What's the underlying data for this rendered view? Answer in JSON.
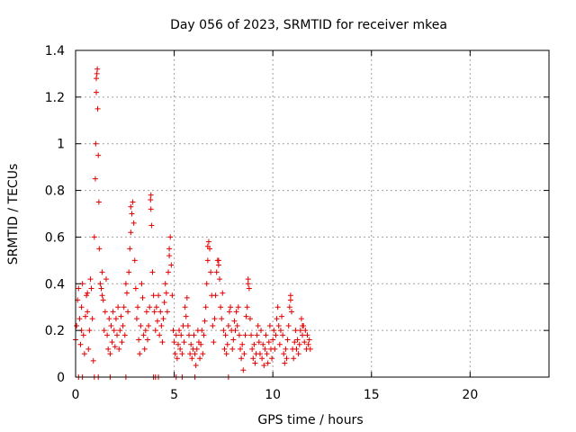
{
  "chart_data": {
    "type": "scatter",
    "title": "Day 056 of 2023, SRMTID for receiver mkea",
    "xlabel": "GPS time / hours",
    "ylabel": "SRMTID / TECUs",
    "xlim": [
      0,
      24
    ],
    "ylim": [
      0,
      1.4
    ],
    "xticks": [
      0,
      5,
      10,
      15,
      20
    ],
    "xtick_labels": [
      "0",
      "5",
      "10",
      "15",
      "20"
    ],
    "yticks": [
      0,
      0.2,
      0.4,
      0.6,
      0.8,
      1.0,
      1.2,
      1.4
    ],
    "ytick_labels": [
      "0",
      "0.2",
      "0.4",
      "0.6",
      "0.8",
      "1",
      "1.2",
      "1.4"
    ],
    "grid": true,
    "marker": "+",
    "series_color": "#e00000",
    "series": [
      {
        "name": "SRMTID",
        "points": [
          [
            0.0,
            0.16
          ],
          [
            0.05,
            0.22
          ],
          [
            0.1,
            0.33
          ],
          [
            0.15,
            0.38
          ],
          [
            0.2,
            0.25
          ],
          [
            0.25,
            0.14
          ],
          [
            0.3,
            0.3
          ],
          [
            0.35,
            0.4
          ],
          [
            0.4,
            0.18
          ],
          [
            0.45,
            0.1
          ],
          [
            0.5,
            0.26
          ],
          [
            0.55,
            0.35
          ],
          [
            0.6,
            0.28
          ],
          [
            0.65,
            0.12
          ],
          [
            0.7,
            0.2
          ],
          [
            0.75,
            0.42
          ],
          [
            0.8,
            0.38
          ],
          [
            0.85,
            0.25
          ],
          [
            0.9,
            0.07
          ],
          [
            0.95,
            0.6
          ],
          [
            1.0,
            0.85
          ],
          [
            1.02,
            1.0
          ],
          [
            1.05,
            1.22
          ],
          [
            1.08,
            1.3
          ],
          [
            1.1,
            1.32
          ],
          [
            1.12,
            1.15
          ],
          [
            1.15,
            0.95
          ],
          [
            1.18,
            0.75
          ],
          [
            1.2,
            0.55
          ],
          [
            1.25,
            0.4
          ],
          [
            1.3,
            0.38
          ],
          [
            1.35,
            0.45
          ],
          [
            1.4,
            0.33
          ],
          [
            1.45,
            0.2
          ],
          [
            1.5,
            0.28
          ],
          [
            1.55,
            0.42
          ],
          [
            1.6,
            0.18
          ],
          [
            1.65,
            0.12
          ],
          [
            1.7,
            0.25
          ],
          [
            1.75,
            0.1
          ],
          [
            1.8,
            0.22
          ],
          [
            1.85,
            0.15
          ],
          [
            1.9,
            0.28
          ],
          [
            1.95,
            0.2
          ],
          [
            2.0,
            0.13
          ],
          [
            2.05,
            0.25
          ],
          [
            2.1,
            0.18
          ],
          [
            2.15,
            0.3
          ],
          [
            2.2,
            0.12
          ],
          [
            2.25,
            0.2
          ],
          [
            2.3,
            0.26
          ],
          [
            2.35,
            0.15
          ],
          [
            2.4,
            0.22
          ],
          [
            2.45,
            0.3
          ],
          [
            2.5,
            0.18
          ],
          [
            2.55,
            0.4
          ],
          [
            2.6,
            0.36
          ],
          [
            2.65,
            0.28
          ],
          [
            2.7,
            0.45
          ],
          [
            2.75,
            0.55
          ],
          [
            2.8,
            0.62
          ],
          [
            2.85,
            0.7
          ],
          [
            2.9,
            0.75
          ],
          [
            2.95,
            0.66
          ],
          [
            3.0,
            0.5
          ],
          [
            3.05,
            0.38
          ],
          [
            3.1,
            0.25
          ],
          [
            3.15,
            0.3
          ],
          [
            3.2,
            0.16
          ],
          [
            3.25,
            0.1
          ],
          [
            3.3,
            0.22
          ],
          [
            3.35,
            0.4
          ],
          [
            3.4,
            0.34
          ],
          [
            3.45,
            0.18
          ],
          [
            3.5,
            0.12
          ],
          [
            3.55,
            0.2
          ],
          [
            3.6,
            0.28
          ],
          [
            3.65,
            0.16
          ],
          [
            3.7,
            0.22
          ],
          [
            3.75,
            0.3
          ],
          [
            3.8,
            0.76
          ],
          [
            3.82,
            0.78
          ],
          [
            3.85,
            0.65
          ],
          [
            3.9,
            0.45
          ],
          [
            3.95,
            0.35
          ],
          [
            4.0,
            0.28
          ],
          [
            4.05,
            0.2
          ],
          [
            4.1,
            0.3
          ],
          [
            4.15,
            0.24
          ],
          [
            4.2,
            0.35
          ],
          [
            4.25,
            0.18
          ],
          [
            4.3,
            0.28
          ],
          [
            4.35,
            0.22
          ],
          [
            4.4,
            0.15
          ],
          [
            4.45,
            0.25
          ],
          [
            4.5,
            0.32
          ],
          [
            4.55,
            0.4
          ],
          [
            4.6,
            0.36
          ],
          [
            4.65,
            0.28
          ],
          [
            4.7,
            0.45
          ],
          [
            4.75,
            0.55
          ],
          [
            4.8,
            0.6
          ],
          [
            4.85,
            0.48
          ],
          [
            4.9,
            0.35
          ],
          [
            4.95,
            0.2
          ],
          [
            5.0,
            0.15
          ],
          [
            5.05,
            0.1
          ],
          [
            5.1,
            0.18
          ],
          [
            5.15,
            0.08
          ],
          [
            5.2,
            0.14
          ],
          [
            5.25,
            0.2
          ],
          [
            5.3,
            0.12
          ],
          [
            5.35,
            0.18
          ],
          [
            5.4,
            0.1
          ],
          [
            5.45,
            0.22
          ],
          [
            5.5,
            0.15
          ],
          [
            5.55,
            0.3
          ],
          [
            5.6,
            0.26
          ],
          [
            5.65,
            0.34
          ],
          [
            5.7,
            0.22
          ],
          [
            5.75,
            0.18
          ],
          [
            5.8,
            0.1
          ],
          [
            5.85,
            0.14
          ],
          [
            5.9,
            0.08
          ],
          [
            5.95,
            0.12
          ],
          [
            6.0,
            0.18
          ],
          [
            6.05,
            0.1
          ],
          [
            6.1,
            0.05
          ],
          [
            6.15,
            0.12
          ],
          [
            6.2,
            0.2
          ],
          [
            6.25,
            0.15
          ],
          [
            6.3,
            0.08
          ],
          [
            6.35,
            0.14
          ],
          [
            6.4,
            0.2
          ],
          [
            6.45,
            0.1
          ],
          [
            6.5,
            0.18
          ],
          [
            6.55,
            0.24
          ],
          [
            6.6,
            0.3
          ],
          [
            6.65,
            0.4
          ],
          [
            6.7,
            0.5
          ],
          [
            6.75,
            0.58
          ],
          [
            6.8,
            0.55
          ],
          [
            6.85,
            0.45
          ],
          [
            6.9,
            0.35
          ],
          [
            6.95,
            0.22
          ],
          [
            7.0,
            0.15
          ],
          [
            7.05,
            0.25
          ],
          [
            7.1,
            0.35
          ],
          [
            7.15,
            0.45
          ],
          [
            7.2,
            0.5
          ],
          [
            7.25,
            0.48
          ],
          [
            7.3,
            0.42
          ],
          [
            7.35,
            0.3
          ],
          [
            7.4,
            0.25
          ],
          [
            7.45,
            0.36
          ],
          [
            7.5,
            0.2
          ],
          [
            7.55,
            0.12
          ],
          [
            7.6,
            0.18
          ],
          [
            7.65,
            0.1
          ],
          [
            7.7,
            0.14
          ],
          [
            7.75,
            0.22
          ],
          [
            7.8,
            0.28
          ],
          [
            7.85,
            0.3
          ],
          [
            7.9,
            0.2
          ],
          [
            7.95,
            0.12
          ],
          [
            8.0,
            0.16
          ],
          [
            8.05,
            0.24
          ],
          [
            8.1,
            0.2
          ],
          [
            8.15,
            0.28
          ],
          [
            8.2,
            0.22
          ],
          [
            8.25,
            0.3
          ],
          [
            8.3,
            0.18
          ],
          [
            8.35,
            0.12
          ],
          [
            8.4,
            0.08
          ],
          [
            8.45,
            0.14
          ],
          [
            8.5,
            0.03
          ],
          [
            8.55,
            0.1
          ],
          [
            8.6,
            0.18
          ],
          [
            8.65,
            0.26
          ],
          [
            8.7,
            0.3
          ],
          [
            8.75,
            0.42
          ],
          [
            8.8,
            0.38
          ],
          [
            8.85,
            0.25
          ],
          [
            8.9,
            0.18
          ],
          [
            8.95,
            0.12
          ],
          [
            9.0,
            0.08
          ],
          [
            9.05,
            0.14
          ],
          [
            9.1,
            0.06
          ],
          [
            9.15,
            0.1
          ],
          [
            9.2,
            0.18
          ],
          [
            9.25,
            0.22
          ],
          [
            9.3,
            0.15
          ],
          [
            9.35,
            0.1
          ],
          [
            9.4,
            0.2
          ],
          [
            9.45,
            0.08
          ],
          [
            9.5,
            0.14
          ],
          [
            9.55,
            0.05
          ],
          [
            9.6,
            0.12
          ],
          [
            9.65,
            0.18
          ],
          [
            9.7,
            0.1
          ],
          [
            9.75,
            0.06
          ],
          [
            9.8,
            0.15
          ],
          [
            9.85,
            0.22
          ],
          [
            9.9,
            0.12
          ],
          [
            9.95,
            0.08
          ],
          [
            10.0,
            0.16
          ],
          [
            10.05,
            0.2
          ],
          [
            10.1,
            0.12
          ],
          [
            10.15,
            0.18
          ],
          [
            10.2,
            0.25
          ],
          [
            10.25,
            0.3
          ],
          [
            10.3,
            0.22
          ],
          [
            10.35,
            0.14
          ],
          [
            10.4,
            0.2
          ],
          [
            10.45,
            0.26
          ],
          [
            10.5,
            0.18
          ],
          [
            10.55,
            0.1
          ],
          [
            10.6,
            0.06
          ],
          [
            10.65,
            0.12
          ],
          [
            10.7,
            0.08
          ],
          [
            10.75,
            0.16
          ],
          [
            10.8,
            0.22
          ],
          [
            10.85,
            0.3
          ],
          [
            10.9,
            0.35
          ],
          [
            10.95,
            0.28
          ],
          [
            11.0,
            0.12
          ],
          [
            11.05,
            0.08
          ],
          [
            11.1,
            0.15
          ],
          [
            11.15,
            0.2
          ],
          [
            11.2,
            0.12
          ],
          [
            11.25,
            0.16
          ],
          [
            11.3,
            0.1
          ],
          [
            11.35,
            0.14
          ],
          [
            11.4,
            0.2
          ],
          [
            11.45,
            0.25
          ],
          [
            11.5,
            0.18
          ],
          [
            11.55,
            0.22
          ],
          [
            11.6,
            0.15
          ],
          [
            11.65,
            0.2
          ],
          [
            11.7,
            0.12
          ],
          [
            11.75,
            0.18
          ],
          [
            11.8,
            0.14
          ],
          [
            11.85,
            0.16
          ],
          [
            11.9,
            0.12
          ],
          [
            0.3,
            0.2
          ],
          [
            0.6,
            0.36
          ],
          [
            1.05,
            1.28
          ],
          [
            1.35,
            0.35
          ],
          [
            2.8,
            0.73
          ],
          [
            3.82,
            0.72
          ],
          [
            4.75,
            0.52
          ],
          [
            6.7,
            0.56
          ],
          [
            7.25,
            0.5
          ],
          [
            8.75,
            0.4
          ],
          [
            10.9,
            0.33
          ],
          [
            11.5,
            0.22
          ],
          [
            0.15,
            0.0
          ],
          [
            0.35,
            0.0
          ],
          [
            0.95,
            0.0
          ],
          [
            1.15,
            0.0
          ],
          [
            1.75,
            0.0
          ],
          [
            2.55,
            0.0
          ],
          [
            3.95,
            0.0
          ],
          [
            4.05,
            0.0
          ],
          [
            4.2,
            0.0
          ],
          [
            5.1,
            0.0
          ],
          [
            5.4,
            0.0
          ],
          [
            6.05,
            0.0
          ],
          [
            7.75,
            0.0
          ]
        ]
      }
    ]
  }
}
